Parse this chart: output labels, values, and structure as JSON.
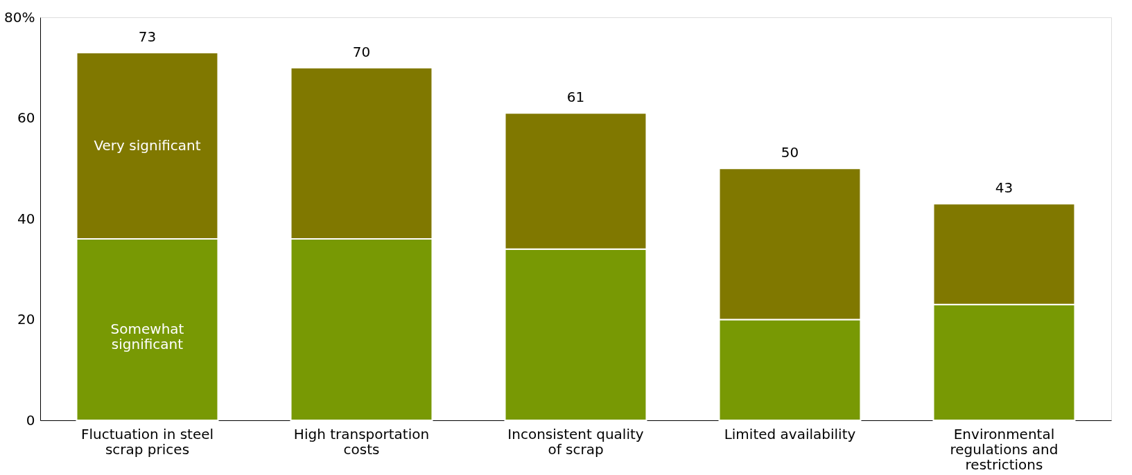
{
  "chart_data": {
    "type": "bar",
    "stacked": true,
    "categories": [
      "Fluctuation in steel scrap prices",
      "High transportation costs",
      "Inconsistent quality of scrap",
      "Limited availability",
      "Environmental regulations and restrictions"
    ],
    "series": [
      {
        "name": "Somewhat significant",
        "color": "#789904",
        "values": [
          36,
          36,
          34,
          20,
          23
        ]
      },
      {
        "name": "Very significant",
        "color": "#807800",
        "values": [
          37,
          34,
          27,
          30,
          20
        ]
      }
    ],
    "totals": [
      "73",
      "70",
      "61",
      "50",
      "43"
    ],
    "ylim": [
      0,
      80
    ],
    "yticks": [
      0,
      20,
      40,
      60,
      {
        "value": 80,
        "label": "80%"
      }
    ],
    "grid": false
  }
}
